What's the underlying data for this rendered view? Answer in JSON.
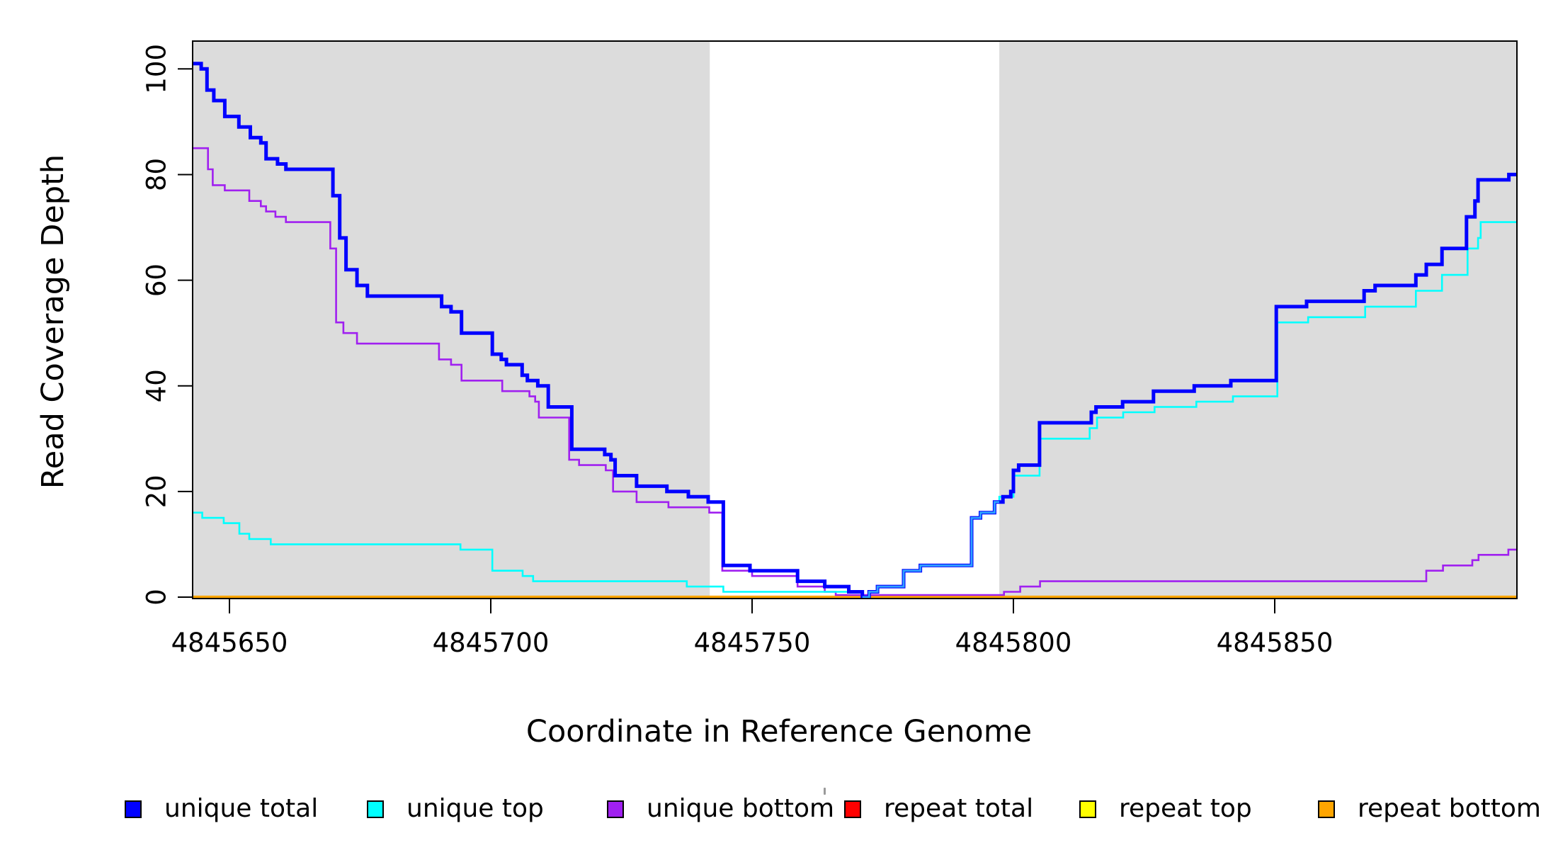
{
  "figure": {
    "x_axis": {
      "title": "Coordinate in Reference Genome",
      "tick_labels": [
        "4845650",
        "4845700",
        "4845750",
        "4845800",
        "4845850"
      ],
      "tick_values": [
        4845650,
        4845700,
        4845750,
        4845800,
        4845850
      ]
    },
    "y_axis": {
      "title": "Read Coverage Depth",
      "tick_labels": [
        "0",
        "20",
        "40",
        "60",
        "80",
        "100"
      ],
      "tick_values": [
        0,
        20,
        40,
        60,
        80,
        100
      ]
    }
  },
  "legend": {
    "items": [
      {
        "label": "unique total",
        "color": "#0000FF"
      },
      {
        "label": "unique top",
        "color": "#00FFFF"
      },
      {
        "label": "unique bottom",
        "color": "#A020F0"
      },
      {
        "label": "repeat total",
        "color": "#FF0000"
      },
      {
        "label": "repeat top",
        "color": "#FFFF00"
      },
      {
        "label": "repeat bottom",
        "color": "#FFA500"
      }
    ]
  },
  "chart_data": {
    "type": "line",
    "subtype": "step-after",
    "title": "",
    "xlabel": "Coordinate in Reference Genome",
    "ylabel": "Read Coverage Depth",
    "xlim": [
      4845643,
      4845896.3
    ],
    "ylim": [
      0,
      105.3
    ],
    "x_ticks": [
      4845650,
      4845700,
      4845750,
      4845800,
      4845850
    ],
    "y_ticks": [
      0,
      20,
      40,
      60,
      80,
      100
    ],
    "grid": false,
    "legend_position": "bottom",
    "plot_background": "#ffffff",
    "shaded_regions": [
      {
        "x1": 4845643,
        "x2": 4845741.9,
        "color": "#dcdcdc",
        "meaning": "unique region (left)"
      },
      {
        "x1": 4845797.3,
        "x2": 4845896.3,
        "color": "#dcdcdc",
        "meaning": "unique region (right)"
      }
    ],
    "series": [
      {
        "key": "repeat_total",
        "name": "repeat total",
        "color": "#FF0000",
        "points": [
          [
            4845643,
            0
          ]
        ]
      },
      {
        "key": "repeat_top",
        "name": "repeat top",
        "color": "#FFFF00",
        "points": [
          [
            4845643,
            0
          ]
        ]
      },
      {
        "key": "repeat_bottom",
        "name": "repeat bottom",
        "color": "#FFA500",
        "points": [
          [
            4845643,
            0
          ]
        ]
      },
      {
        "key": "unique_bottom",
        "name": "unique bottom",
        "color": "#A020F0",
        "points": [
          [
            4845643,
            85
          ],
          [
            4845645.9,
            81
          ],
          [
            4845646.8,
            78
          ],
          [
            4845649.1,
            77
          ],
          [
            4845653.8,
            75
          ],
          [
            4845656,
            74
          ],
          [
            4845657,
            73
          ],
          [
            4845658.8,
            72
          ],
          [
            4845660.8,
            71
          ],
          [
            4845669.3,
            66
          ],
          [
            4845670.4,
            52
          ],
          [
            4845671.8,
            50
          ],
          [
            4845674.4,
            48
          ],
          [
            4845690.1,
            45
          ],
          [
            4845692.4,
            44
          ],
          [
            4845694.4,
            41
          ],
          [
            4845702.2,
            39
          ],
          [
            4845707.4,
            38
          ],
          [
            4845708.5,
            37
          ],
          [
            4845709.2,
            34
          ],
          [
            4845715,
            26
          ],
          [
            4845716.9,
            25
          ],
          [
            4845722,
            24
          ],
          [
            4845723.4,
            20
          ],
          [
            4845727.9,
            18
          ],
          [
            4845734,
            17
          ],
          [
            4845741.8,
            16
          ],
          [
            4845744.3,
            5
          ],
          [
            4845750,
            4
          ],
          [
            4845758.7,
            2
          ],
          [
            4845763.9,
            1
          ],
          [
            4845766,
            0.4
          ],
          [
            4845798.2,
            1
          ],
          [
            4845801.3,
            2
          ],
          [
            4845805.1,
            3
          ],
          [
            4845879,
            5
          ],
          [
            4845882.2,
            6
          ],
          [
            4845887.8,
            7
          ],
          [
            4845889,
            8
          ],
          [
            4845894.7,
            9
          ]
        ]
      },
      {
        "key": "unique_top",
        "name": "unique top",
        "color": "#00FFFF",
        "points": [
          [
            4845643,
            16
          ],
          [
            4845644.8,
            15
          ],
          [
            4845648.9,
            14
          ],
          [
            4845651.9,
            12
          ],
          [
            4845653.8,
            11
          ],
          [
            4845657.9,
            10
          ],
          [
            4845694.2,
            9
          ],
          [
            4845700.3,
            5
          ],
          [
            4845706.1,
            4
          ],
          [
            4845708.1,
            3
          ],
          [
            4845737.5,
            2
          ],
          [
            4845744.5,
            1
          ],
          [
            4845771.1,
            0
          ],
          [
            4845772.4,
            1
          ],
          [
            4845774,
            2
          ],
          [
            4845779,
            5
          ],
          [
            4845782.2,
            6
          ],
          [
            4845792,
            15
          ],
          [
            4845793.7,
            16
          ],
          [
            4845796.4,
            18
          ],
          [
            4845797.3,
            19
          ],
          [
            4845800,
            23
          ],
          [
            4845805,
            30
          ],
          [
            4845814.6,
            32
          ],
          [
            4845816,
            34
          ],
          [
            4845821,
            35
          ],
          [
            4845827,
            36
          ],
          [
            4845835,
            37
          ],
          [
            4845842,
            38
          ],
          [
            4845850.5,
            52
          ],
          [
            4845856.4,
            53
          ],
          [
            4845867.3,
            55
          ],
          [
            4845877,
            58
          ],
          [
            4845882,
            61
          ],
          [
            4845886.9,
            66
          ],
          [
            4845888.9,
            68
          ],
          [
            4845889.4,
            71
          ]
        ]
      },
      {
        "key": "unique_total",
        "name": "unique total",
        "color": "#0000FF",
        "points": [
          [
            4845643,
            101
          ],
          [
            4845644.6,
            100
          ],
          [
            4845645.7,
            96
          ],
          [
            4845647,
            94
          ],
          [
            4845649.1,
            91
          ],
          [
            4845651.8,
            89
          ],
          [
            4845654,
            87
          ],
          [
            4845656,
            86
          ],
          [
            4845657,
            83
          ],
          [
            4845659.2,
            82
          ],
          [
            4845660.8,
            81
          ],
          [
            4845669.8,
            76
          ],
          [
            4845671.1,
            68
          ],
          [
            4845672.3,
            62
          ],
          [
            4845674.4,
            59
          ],
          [
            4845676.4,
            57
          ],
          [
            4845690.6,
            55
          ],
          [
            4845692.4,
            54
          ],
          [
            4845694.4,
            50
          ],
          [
            4845700.3,
            46
          ],
          [
            4845702,
            45
          ],
          [
            4845703,
            44
          ],
          [
            4845706,
            42
          ],
          [
            4845707,
            41
          ],
          [
            4845709,
            40
          ],
          [
            4845711,
            36
          ],
          [
            4845715.5,
            28
          ],
          [
            4845721.8,
            27
          ],
          [
            4845723,
            26
          ],
          [
            4845723.8,
            23
          ],
          [
            4845727.9,
            21
          ],
          [
            4845733.7,
            20
          ],
          [
            4845737.8,
            19
          ],
          [
            4845741.6,
            18
          ],
          [
            4845744.5,
            6
          ],
          [
            4845749.6,
            5
          ],
          [
            4845758.7,
            3
          ],
          [
            4845763.9,
            2
          ],
          [
            4845768.5,
            1
          ],
          [
            4845771.1,
            0
          ],
          [
            4845772.4,
            1
          ],
          [
            4845774,
            2
          ],
          [
            4845779,
            5
          ],
          [
            4845782.2,
            6
          ],
          [
            4845792,
            15
          ],
          [
            4845793.7,
            16
          ],
          [
            4845796.4,
            18
          ],
          [
            4845798,
            19
          ],
          [
            4845799.5,
            20
          ],
          [
            4845800,
            24
          ],
          [
            4845801,
            25
          ],
          [
            4845805,
            33
          ],
          [
            4845814.9,
            35
          ],
          [
            4845815.8,
            36
          ],
          [
            4845820.9,
            37
          ],
          [
            4845826.8,
            39
          ],
          [
            4845834.6,
            40
          ],
          [
            4845841.6,
            41
          ],
          [
            4845850.3,
            55
          ],
          [
            4845856.1,
            56
          ],
          [
            4845867.1,
            58
          ],
          [
            4845869.2,
            59
          ],
          [
            4845877,
            61
          ],
          [
            4845879,
            63
          ],
          [
            4845882,
            66
          ],
          [
            4845886.7,
            72
          ],
          [
            4845888.3,
            75
          ],
          [
            4845888.9,
            79
          ],
          [
            4845894.8,
            80
          ]
        ]
      },
      {
        "key": "merged_total_top",
        "name": "total/top overlap (repeat gap)",
        "color": "#2FA1FF",
        "end": 4845797.3,
        "points": [
          [
            4845771.1,
            0
          ],
          [
            4845772.4,
            1
          ],
          [
            4845774,
            2
          ],
          [
            4845779,
            5
          ],
          [
            4845782.2,
            6
          ],
          [
            4845792,
            15
          ],
          [
            4845793.7,
            16
          ],
          [
            4845796.4,
            18
          ]
        ]
      }
    ]
  }
}
